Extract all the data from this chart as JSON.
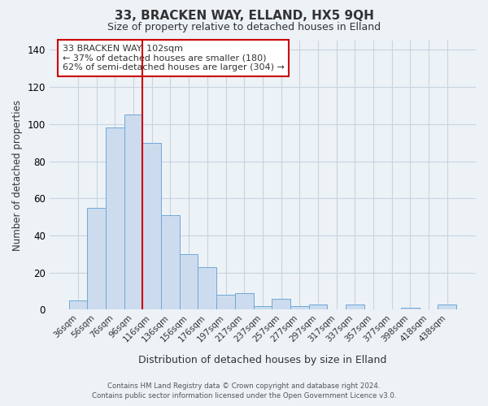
{
  "title": "33, BRACKEN WAY, ELLAND, HX5 9QH",
  "subtitle": "Size of property relative to detached houses in Elland",
  "xlabel": "Distribution of detached houses by size in Elland",
  "ylabel": "Number of detached properties",
  "bar_labels": [
    "36sqm",
    "56sqm",
    "76sqm",
    "96sqm",
    "116sqm",
    "136sqm",
    "156sqm",
    "176sqm",
    "197sqm",
    "217sqm",
    "237sqm",
    "257sqm",
    "277sqm",
    "297sqm",
    "317sqm",
    "337sqm",
    "357sqm",
    "377sqm",
    "398sqm",
    "418sqm",
    "438sqm"
  ],
  "bar_values": [
    5,
    55,
    98,
    105,
    90,
    51,
    30,
    23,
    8,
    9,
    2,
    6,
    2,
    3,
    0,
    3,
    0,
    0,
    1,
    0,
    3
  ],
  "bar_color": "#ccdcee",
  "bar_edge_color": "#6ea8d8",
  "vline_color": "#cc0000",
  "annotation_text": "33 BRACKEN WAY: 102sqm\n← 37% of detached houses are smaller (180)\n62% of semi-detached houses are larger (304) →",
  "annotation_box_color": "#ffffff",
  "annotation_box_edge": "#cc0000",
  "ylim": [
    0,
    145
  ],
  "yticks": [
    0,
    20,
    40,
    60,
    80,
    100,
    120,
    140
  ],
  "footer_line1": "Contains HM Land Registry data © Crown copyright and database right 2024.",
  "footer_line2": "Contains public sector information licensed under the Open Government Licence v3.0.",
  "background_color": "#edf2f7",
  "plot_bg_color": "#edf2f7",
  "grid_color": "#c8d4e0"
}
